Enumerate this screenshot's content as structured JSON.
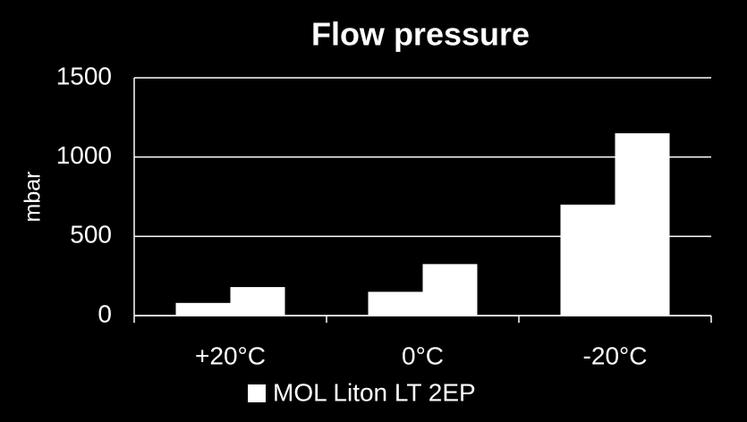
{
  "chart_data": {
    "type": "bar",
    "title": "Flow pressure",
    "y_label": "mbar",
    "categories": [
      "+20°C",
      "0°C",
      "-20°C"
    ],
    "series": [
      {
        "name": "MOL Liton LT 2EP",
        "color": "#ffffff",
        "values": [
          80,
          150,
          700
        ]
      },
      {
        "color": "#ffffff",
        "values": [
          180,
          325,
          1150
        ]
      }
    ],
    "ylim": [
      0,
      1500
    ],
    "yticks": [
      0,
      500,
      1000,
      1500
    ],
    "grid": true
  }
}
